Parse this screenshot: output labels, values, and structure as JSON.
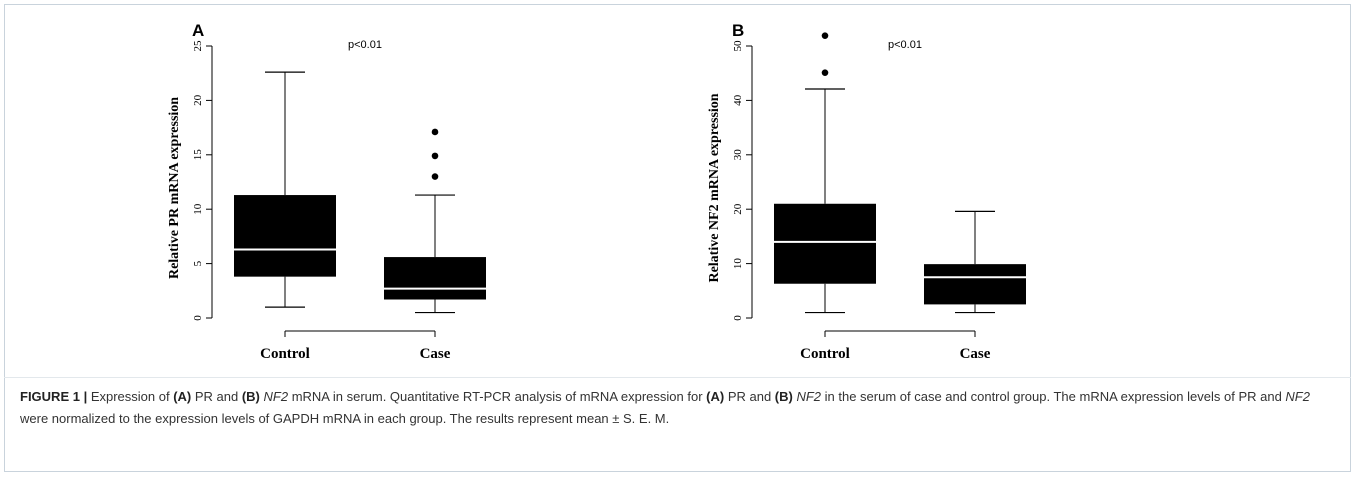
{
  "panels": [
    {
      "letter": "A",
      "pvalue": "p<0.01",
      "ylabel": "Relative PR mRNA expression"
    },
    {
      "letter": "B",
      "pvalue": "p<0.01",
      "ylabel": "Relative NF2 mRNA expression"
    }
  ],
  "caption": {
    "label": "FIGURE 1 |",
    "s1": " Expression of ",
    "a": "(A)",
    "s2": " PR and ",
    "b": "(B)",
    "nf2": "NF2",
    "s3": " mRNA in serum. Quantitative RT-PCR analysis of mRNA expression for ",
    "a2": "(A)",
    "s4": " PR and ",
    "b2": "(B)",
    "nf2b": "NF2",
    "s5": " in the serum of case and control group. The mRNA expression levels of PR and ",
    "nf2c": "NF2",
    "s6": " were normalized to the expression levels of GAPDH mRNA in each group. The results represent mean ± S. E. M."
  },
  "chart_data": [
    {
      "type": "box",
      "title": "",
      "ylabel": "Relative PR mRNA expression",
      "categories": [
        "Control",
        "Case"
      ],
      "ylim": [
        0,
        25
      ],
      "yticks": [
        0,
        5,
        10,
        15,
        20,
        25
      ],
      "boxes": [
        {
          "category": "Control",
          "whisker_low": 1.0,
          "q1": 3.8,
          "median": 6.3,
          "q3": 11.3,
          "whisker_high": 22.6,
          "outliers": []
        },
        {
          "category": "Case",
          "whisker_low": 0.5,
          "q1": 1.7,
          "median": 2.7,
          "q3": 5.6,
          "whisker_high": 11.3,
          "outliers": [
            13.0,
            14.9,
            17.1
          ]
        }
      ],
      "box_color": "#000000",
      "median_color": "#ffffff"
    },
    {
      "type": "box",
      "title": "",
      "ylabel": "Relative NF2 mRNA expression",
      "categories": [
        "Control",
        "Case"
      ],
      "ylim": [
        0,
        50
      ],
      "yticks": [
        0,
        10,
        20,
        30,
        40,
        50
      ],
      "boxes": [
        {
          "category": "Control",
          "whisker_low": 1.0,
          "q1": 6.3,
          "median": 14.0,
          "q3": 21.0,
          "whisker_high": 42.1,
          "outliers": [
            45.1,
            51.9
          ]
        },
        {
          "category": "Case",
          "whisker_low": 1.0,
          "q1": 2.5,
          "median": 7.5,
          "q3": 9.9,
          "whisker_high": 19.6,
          "outliers": []
        }
      ],
      "box_color": "#000000",
      "median_color": "#ffffff"
    }
  ]
}
